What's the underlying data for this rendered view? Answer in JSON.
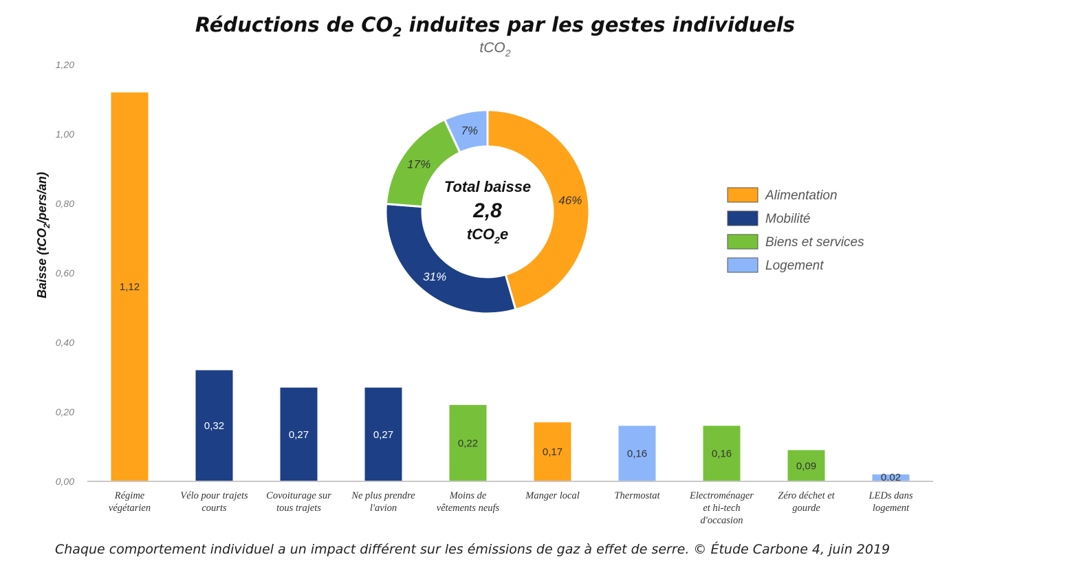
{
  "chart_data": {
    "type": "bar",
    "title_parts": [
      "Réductions de CO",
      "2",
      " induites par les gestes individuels"
    ],
    "subtitle_parts": [
      "tCO",
      "2"
    ],
    "ylabel_parts": [
      "Baisse (tCO",
      "2",
      "/pers/an)"
    ],
    "ylim": [
      0,
      1.2
    ],
    "yticks": [
      "0,00",
      "0,20",
      "0,40",
      "0,60",
      "0,80",
      "1,00",
      "1,20"
    ],
    "categories": [
      [
        "Régime",
        "végétarien"
      ],
      [
        "Vélo pour trajets",
        "courts"
      ],
      [
        "Covoiturage sur",
        "tous trajets"
      ],
      [
        "Ne plus prendre",
        "l'avion"
      ],
      [
        "Moins de",
        "vêtements neufs"
      ],
      [
        "Manger local"
      ],
      [
        "Thermostat"
      ],
      [
        "Electroménager",
        "et hi-tech",
        "d'occasion"
      ],
      [
        "Zéro déchet et",
        "gourde"
      ],
      [
        "LEDs dans",
        "logement"
      ]
    ],
    "values": [
      1.12,
      0.32,
      0.27,
      0.27,
      0.22,
      0.17,
      0.16,
      0.16,
      0.09,
      0.02
    ],
    "value_labels": [
      "1,12",
      "0,32",
      "0,27",
      "0,27",
      "0,22",
      "0,17",
      "0,16",
      "0,16",
      "0,09",
      "0,02"
    ],
    "bar_groups": [
      "Alimentation",
      "Mobilité",
      "Mobilité",
      "Mobilité",
      "Biens et services",
      "Alimentation",
      "Logement",
      "Biens et services",
      "Biens et services",
      "Logement"
    ],
    "legend": {
      "position": "right",
      "items": [
        {
          "name": "Alimentation",
          "color": "#FFA31A"
        },
        {
          "name": "Mobilité",
          "color": "#1D3F85"
        },
        {
          "name": "Biens et services",
          "color": "#77C13A"
        },
        {
          "name": "Logement",
          "color": "#8DB6FA"
        }
      ]
    },
    "donut": {
      "center_label": "Total baisse",
      "total_value": "2,8",
      "unit_parts": [
        "tCO",
        "2",
        "e"
      ],
      "slices": [
        {
          "name": "Alimentation",
          "percent": 46,
          "label": "46%",
          "color": "#FFA31A"
        },
        {
          "name": "Mobilité",
          "percent": 31,
          "label": "31%",
          "color": "#1D3F85"
        },
        {
          "name": "Biens et services",
          "percent": 17,
          "label": "17%",
          "color": "#77C13A"
        },
        {
          "name": "Logement",
          "percent": 7,
          "label": "7%",
          "color": "#8DB6FA"
        }
      ]
    }
  },
  "caption": "Chaque comportement individuel a un impact différent sur les émissions de gaz à effet de serre. © Étude Carbone 4, juin 2019"
}
